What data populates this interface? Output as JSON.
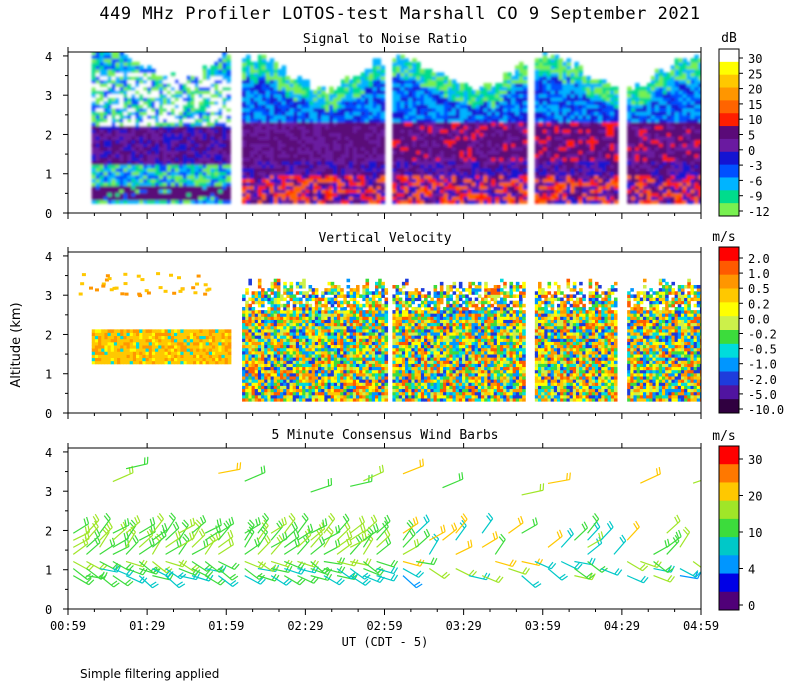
{
  "title": "449 MHz Profiler LOTOS-test Marshall CO  9 September 2021",
  "footnote": "Simple filtering applied",
  "shared": {
    "ylabel": "Altitude (km)",
    "xlabel": "UT  (CDT - 5)",
    "x_ticks": [
      "00:59",
      "01:29",
      "01:59",
      "02:29",
      "02:59",
      "03:29",
      "03:59",
      "04:29",
      "04:59"
    ],
    "y_ticks": [
      "0",
      "1",
      "2",
      "3",
      "4"
    ],
    "xlim": [
      "00:59",
      "04:59"
    ],
    "ylim": [
      0,
      4.1
    ]
  },
  "chart_data": [
    {
      "type": "heatmap",
      "title": "Signal to Noise Ratio",
      "colorbar_unit": "dB",
      "colorbar_labels": [
        "30",
        "25",
        "20",
        "15",
        "10",
        "5",
        "0",
        "-3",
        "-6",
        "-9",
        "-12"
      ],
      "colorbar_colors": [
        "#ffffff",
        "#ffff00",
        "#ffc800",
        "#ff9600",
        "#ff6400",
        "#ff1e00",
        "#5a0a78",
        "#6a1aa0",
        "#1414d2",
        "#0050ff",
        "#00b4ff",
        "#00dc8c",
        "#78f050"
      ],
      "data_segments": [
        [
          "01:08",
          "02:00"
        ],
        [
          "02:05",
          "02:59"
        ],
        [
          "03:02",
          "03:52"
        ],
        [
          "03:56",
          "04:27"
        ],
        [
          "04:31",
          "04:59"
        ]
      ],
      "notes": [
        "strong return band near 1.2-2.1 km",
        "weak return above ~3 km"
      ]
    },
    {
      "type": "heatmap",
      "title": "Vertical Velocity",
      "colorbar_unit": "m/s",
      "colorbar_labels": [
        "2.0",
        "1.0",
        "0.5",
        "0.2",
        "0.0",
        "-0.2",
        "-0.5",
        "-1.0",
        "-2.0",
        "-5.0",
        "-10.0"
      ],
      "colorbar_colors": [
        "#ff0000",
        "#ff5a00",
        "#ff9600",
        "#ffc800",
        "#ffff00",
        "#ccf04a",
        "#3cdc3c",
        "#00dcdc",
        "#0096ff",
        "#1e3cdc",
        "#5014a0",
        "#300040"
      ],
      "data_segments": [
        [
          "01:08",
          "02:00"
        ],
        [
          "02:05",
          "02:59"
        ],
        [
          "03:02",
          "03:52"
        ],
        [
          "03:56",
          "04:27"
        ],
        [
          "04:31",
          "04:59"
        ]
      ]
    },
    {
      "type": "scatter",
      "title": "5 Minute Consensus Wind Barbs",
      "colorbar_unit": "m/s",
      "colorbar_labels": [
        "30",
        "20",
        "10",
        "4",
        "0"
      ],
      "colorbar_colors": [
        "#ff0000",
        "#ff7800",
        "#ffc800",
        "#a0e628",
        "#3cdc3c",
        "#00c8c8",
        "#0096ff",
        "#0000e6",
        "#500078"
      ],
      "notes": [
        "wind barbs plotted at each 5-minute interval",
        "densest barbs between 0.8 and 2.0 km"
      ]
    }
  ]
}
